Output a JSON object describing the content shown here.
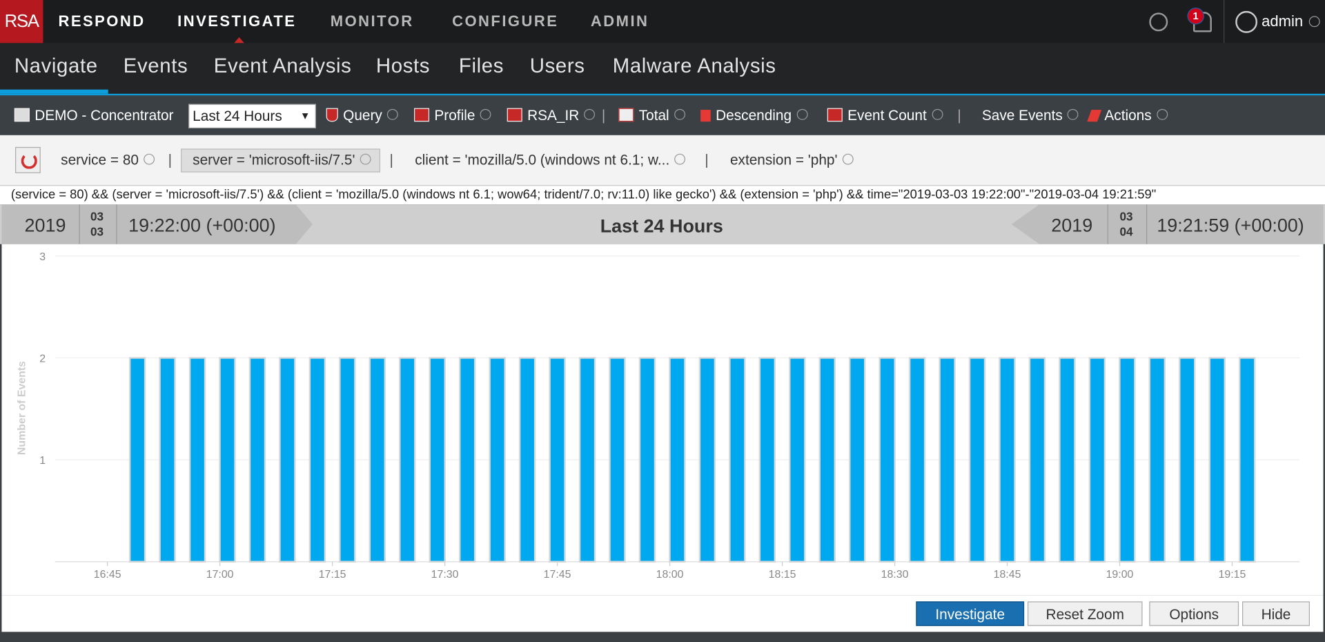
{
  "nav": {
    "logo": "RSA",
    "items": [
      "RESPOND",
      "INVESTIGATE",
      "MONITOR",
      "CONFIGURE",
      "ADMIN"
    ],
    "notifications": "1",
    "user": "admin"
  },
  "subnav": [
    "Navigate",
    "Events",
    "Event Analysis",
    "Hosts",
    "Files",
    "Users",
    "Malware Analysis"
  ],
  "toolbar": {
    "service": "DEMO - Concentrator",
    "range": "Last 24 Hours",
    "items": [
      "Query",
      "Profile",
      "RSA_IR",
      "Total",
      "Descending",
      "Event Count",
      "Save Events",
      "Actions"
    ]
  },
  "filters": [
    "service = 80",
    "server = 'microsoft-iis/7.5'",
    "client = 'mozilla/5.0 (windows nt 6.1; w...",
    "extension = 'php'"
  ],
  "query": "(service = 80) && (server = 'microsoft-iis/7.5') && (client = 'mozilla/5.0 (windows nt 6.1; wow64; trident/7.0; rv:11.0) like gecko') && (extension = 'php') && time=\"2019-03-03 19:22:00\"-\"2019-03-04 19:21:59\"",
  "timebar": {
    "start": {
      "year": "2019",
      "month": "03",
      "day": "03",
      "time": "19:22:00 (+00:00)"
    },
    "label": "Last 24 Hours",
    "end": {
      "year": "2019",
      "month": "03",
      "day": "04",
      "time": "19:21:59 (+00:00)"
    }
  },
  "chart_data": {
    "type": "bar",
    "y_label": "Number of Events",
    "color": "#00a8f0",
    "x": [
      "16:49",
      "16:53",
      "16:57",
      "17:01",
      "17:05",
      "17:09",
      "17:13",
      "17:17",
      "17:21",
      "17:25",
      "17:29",
      "17:33",
      "17:37",
      "17:41",
      "17:45",
      "17:49",
      "17:53",
      "17:57",
      "18:01",
      "18:05",
      "18:09",
      "18:13",
      "18:17",
      "18:21",
      "18:25",
      "18:29",
      "18:33",
      "18:37",
      "18:41",
      "18:45",
      "18:49",
      "18:53",
      "18:57",
      "19:01",
      "19:05",
      "19:09",
      "19:13",
      "19:17"
    ],
    "values": [
      2,
      2,
      2,
      2,
      2,
      2,
      2,
      2,
      2,
      2,
      2,
      2,
      2,
      2,
      2,
      2,
      2,
      2,
      2,
      2,
      2,
      2,
      2,
      2,
      2,
      2,
      2,
      2,
      2,
      2,
      2,
      2,
      2,
      2,
      2,
      2,
      2,
      2
    ],
    "xlim": [
      "16:38",
      "19:24"
    ],
    "xticks": [
      "16:45",
      "17:00",
      "17:15",
      "17:30",
      "17:45",
      "18:00",
      "18:15",
      "18:30",
      "18:45",
      "19:00",
      "19:15"
    ],
    "ylim": [
      0,
      3
    ],
    "yticks": [
      1,
      2,
      3
    ],
    "grid": true
  },
  "buttons": [
    "Investigate",
    "Reset Zoom",
    "Options",
    "Hide"
  ]
}
